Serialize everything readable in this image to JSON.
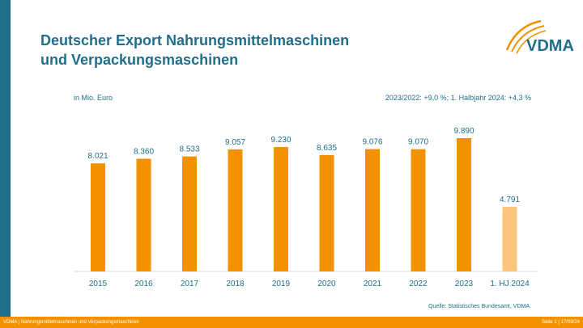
{
  "header": {
    "title_line1": "Deutscher Export Nahrungsmittelmaschinen",
    "title_line2": "und Verpackungsmaschinen",
    "logo_text": "VDMA"
  },
  "chart_data": {
    "type": "bar",
    "unit_label": "in Mio. Euro",
    "annotation": "2023/2022: +9,0 %; 1. Halbjahr 2024: +4,3 %",
    "categories": [
      "2015",
      "2016",
      "2017",
      "2018",
      "2019",
      "2020",
      "2021",
      "2022",
      "2023",
      "1. HJ 2024"
    ],
    "values": [
      8021,
      8360,
      8533,
      9057,
      9230,
      8635,
      9076,
      9070,
      9890,
      4791
    ],
    "value_labels": [
      "8.021",
      "8.360",
      "8.533",
      "9.057",
      "9.230",
      "8.635",
      "9.076",
      "9.070",
      "9.890",
      "4.791"
    ],
    "highlight_last": true,
    "ylim": [
      0,
      9890
    ],
    "grid": false,
    "source": "Quelle: Statistisches Bundesamt, VDMA",
    "colors": {
      "bar": "#f39200",
      "bar_partial": "#fbc57d",
      "accent": "#1f6e8c"
    }
  },
  "footer": {
    "left": "VDMA | Nahrungsmittelmaschinen und Verpackungsmaschinen",
    "right": "Seite 1 | 17/09/24"
  }
}
